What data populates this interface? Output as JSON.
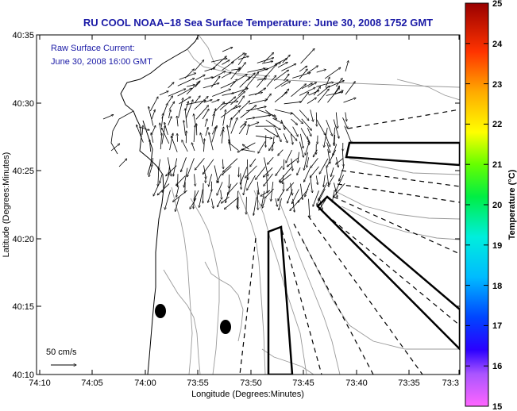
{
  "title": "RU COOL   NOAA–18  Sea Surface Temperature:  June 30, 2008 1752 GMT",
  "overlay": {
    "line1": "Raw Surface Current:",
    "line2": "June 30, 2008 16:00 GMT"
  },
  "axes": {
    "xlabel": "Longitude (Degrees:Minutes)",
    "ylabel": "Latitude (Degrees:Minutes)",
    "x_ticks": [
      "74:10",
      "74:05",
      "74:00",
      "73:55",
      "73:50",
      "73:45",
      "73:40",
      "73:35",
      "73:3"
    ],
    "y_ticks": [
      "40:35",
      "40:30",
      "40:25",
      "40:20",
      "40:15",
      "40:10"
    ]
  },
  "scale": {
    "label": "50 cm/s"
  },
  "colorbar": {
    "label": "Temperature (°C)",
    "ticks": [
      "25",
      "24",
      "23",
      "22",
      "21",
      "20",
      "19",
      "18",
      "17",
      "16",
      "15"
    ],
    "min": 15,
    "max": 25
  },
  "colors": {
    "title": "#1a1aa6",
    "contour": "#999999",
    "land": "#ffffff"
  }
}
